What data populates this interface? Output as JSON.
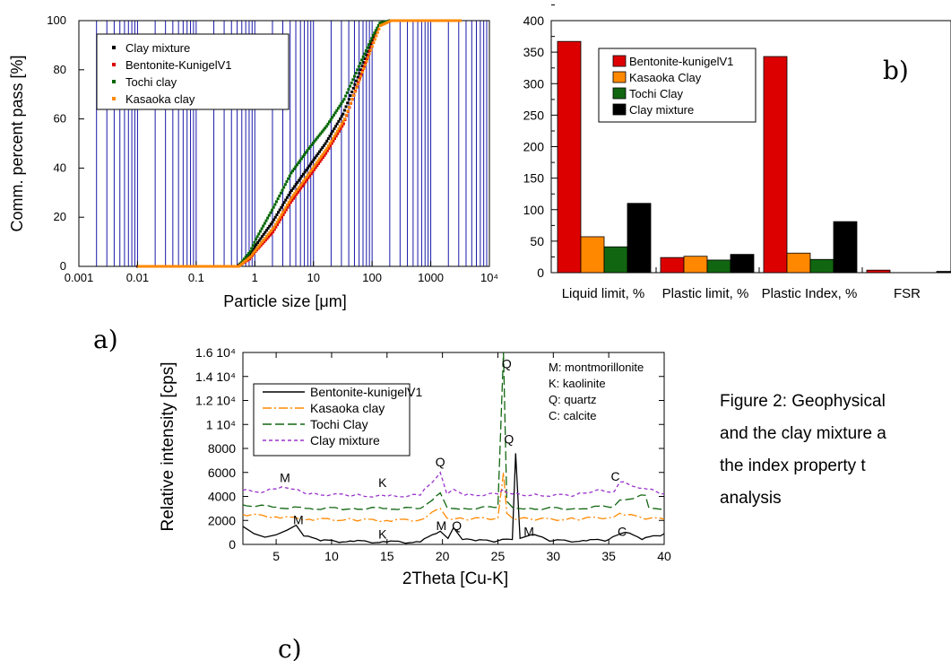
{
  "panel_labels": {
    "a": "a)",
    "b": "b)",
    "c": "c)"
  },
  "caption": {
    "line1": "Figure 2: Geophysical",
    "line2": "and the clay mixture a",
    "line3": "the   index   property   t",
    "line4": "analysis"
  },
  "chart_data": [
    {
      "id": "a",
      "type": "scatter",
      "xscale": "log",
      "xlabel": "Particle size [μm]",
      "ylabel": "Comm. percent pass [%]",
      "xlim": [
        0.001,
        10000
      ],
      "ylim": [
        0,
        100
      ],
      "xticks": [
        "0.001",
        "0.01",
        "0.1",
        "1",
        "10",
        "100",
        "1000",
        "10⁴"
      ],
      "yticks": [
        "0",
        "20",
        "40",
        "60",
        "80",
        "100"
      ],
      "grid": "vertical",
      "legend_position": "top-left",
      "series": [
        {
          "name": "Clay mixture",
          "color": "#000000",
          "x": [
            0.01,
            0.3,
            0.5,
            0.8,
            1,
            2,
            4,
            8,
            16,
            32,
            64,
            100,
            130,
            200,
            3000
          ],
          "y": [
            0,
            0,
            0,
            4,
            8,
            18,
            30,
            40,
            50,
            62,
            80,
            92,
            98,
            100,
            100
          ]
        },
        {
          "name": "Bentonite-KunigelV1",
          "color": "#dd0000",
          "x": [
            0.01,
            0.3,
            0.5,
            0.8,
            1,
            2,
            4,
            8,
            16,
            32,
            64,
            100,
            130,
            200,
            3000
          ],
          "y": [
            0,
            0,
            0,
            3,
            6,
            14,
            26,
            36,
            46,
            58,
            78,
            91,
            98,
            100,
            100
          ]
        },
        {
          "name": "Tochi clay",
          "color": "#006600",
          "x": [
            0.01,
            0.3,
            0.5,
            0.8,
            1,
            2,
            4,
            8,
            16,
            32,
            64,
            100,
            130,
            200,
            3000
          ],
          "y": [
            0,
            0,
            0,
            6,
            11,
            24,
            38,
            48,
            57,
            68,
            84,
            94,
            99,
            100,
            100
          ]
        },
        {
          "name": "Kasaoka clay",
          "color": "#ff8800",
          "x": [
            0.01,
            0.3,
            0.5,
            0.8,
            1,
            2,
            4,
            8,
            16,
            32,
            64,
            100,
            130,
            200,
            3000
          ],
          "y": [
            0,
            0,
            0,
            4,
            7,
            16,
            28,
            38,
            48,
            60,
            79,
            91,
            98,
            100,
            100
          ]
        }
      ]
    },
    {
      "id": "b",
      "type": "bar",
      "categories": [
        "Liquid limit, %",
        "Plastic limit, %",
        "Plastic Index, %",
        "FSR"
      ],
      "ylim": [
        0,
        400
      ],
      "yticks": [
        "0",
        "50",
        "100",
        "150",
        "200",
        "250",
        "300",
        "350",
        "400"
      ],
      "panel_text": "b)",
      "legend_position": "top-left",
      "series": [
        {
          "name": "Bentonite-kunigelV1",
          "color": "#dd0000",
          "values": [
            367,
            24,
            343,
            4
          ]
        },
        {
          "name": "Kasaoka Clay",
          "color": "#ff8800",
          "values": [
            57,
            26,
            31,
            0
          ]
        },
        {
          "name": "Tochi Clay",
          "color": "#116611",
          "values": [
            41,
            20,
            21,
            0
          ]
        },
        {
          "name": "Clay mixture",
          "color": "#000000",
          "values": [
            110,
            29,
            81,
            2
          ]
        }
      ]
    },
    {
      "id": "c",
      "type": "line",
      "xlabel": "2Theta [Cu-K]",
      "ylabel": "Relative intensity [cps]",
      "xlim": [
        2,
        40
      ],
      "ylim": [
        0,
        16000
      ],
      "xticks": [
        "5",
        "10",
        "15",
        "20",
        "25",
        "30",
        "35",
        "40"
      ],
      "yticks": [
        "0",
        "2000",
        "4000",
        "6000",
        "8000",
        "1 10⁴",
        "1.2 10⁴",
        "1.4 10⁴",
        "1.6 10⁴"
      ],
      "legend_position": "top-left",
      "series": [
        {
          "name": "Bentonite-kunigelV1",
          "color": "#000000",
          "dash": "solid",
          "x": [
            2,
            3,
            4,
            5,
            6,
            6.8,
            7.5,
            9,
            12,
            15,
            18,
            19.8,
            20.5,
            21,
            21.8,
            23,
            25,
            26.3,
            26.6,
            27,
            28,
            30,
            33,
            35,
            36.5,
            38,
            40
          ],
          "y": [
            1500,
            900,
            600,
            800,
            1200,
            1600,
            700,
            300,
            250,
            200,
            200,
            1100,
            500,
            1400,
            400,
            300,
            300,
            400,
            7600,
            500,
            800,
            300,
            300,
            400,
            1000,
            400,
            900
          ]
        },
        {
          "name": "Kasaoka clay",
          "color": "#ff8800",
          "dash": "dash-dot",
          "x": [
            2,
            5,
            8,
            12,
            15,
            18,
            19.8,
            20.4,
            22,
            25,
            25.5,
            25.8,
            26.3,
            28,
            32,
            35.5,
            36,
            38,
            40
          ],
          "y": [
            2500,
            2300,
            2100,
            2050,
            2000,
            2050,
            3000,
            2200,
            2100,
            2200,
            6000,
            2600,
            2200,
            2100,
            2100,
            2300,
            2600,
            2200,
            2100
          ]
        },
        {
          "name": "Tochi Clay",
          "color": "#116611",
          "dash": "long-dash",
          "x": [
            2,
            5,
            8,
            12,
            15,
            18,
            19.8,
            20.4,
            22,
            25,
            25.5,
            25.8,
            26.3,
            28,
            32,
            35.5,
            36,
            38.3,
            38.6,
            40
          ],
          "y": [
            3300,
            3100,
            3000,
            3000,
            3000,
            3000,
            4300,
            3100,
            3000,
            3100,
            16000,
            3600,
            3100,
            3000,
            3000,
            3200,
            3700,
            4100,
            3100,
            3000
          ]
        },
        {
          "name": "Clay mixture",
          "color": "#9933cc",
          "dash": "short-dash",
          "x": [
            2,
            4,
            5.5,
            6.5,
            8,
            12,
            15,
            18,
            19.8,
            20.4,
            21,
            22,
            25,
            25.5,
            25.8,
            26.3,
            28,
            32,
            33.8,
            35.5,
            36,
            38.5,
            40
          ],
          "y": [
            4500,
            4400,
            4800,
            4600,
            4200,
            4100,
            4000,
            4100,
            6000,
            4200,
            4600,
            4100,
            4200,
            4600,
            4300,
            4200,
            4100,
            4100,
            4500,
            4400,
            5200,
            4600,
            4200
          ]
        }
      ],
      "annotations": [
        {
          "text": "M",
          "x": 5.8,
          "y": 5200
        },
        {
          "text": "K",
          "x": 14.6,
          "y": 4800
        },
        {
          "text": "Q",
          "x": 19.8,
          "y": 6500
        },
        {
          "text": "Q",
          "x": 25.8,
          "y": 14700
        },
        {
          "text": "Q",
          "x": 26.0,
          "y": 8400
        },
        {
          "text": "C",
          "x": 35.6,
          "y": 5300
        },
        {
          "text": "M",
          "x": 7.0,
          "y": 1700
        },
        {
          "text": "K",
          "x": 14.6,
          "y": 500
        },
        {
          "text": "M",
          "x": 19.9,
          "y": 1200
        },
        {
          "text": "Q",
          "x": 21.3,
          "y": 1200
        },
        {
          "text": "M",
          "x": 27.8,
          "y": 700
        },
        {
          "text": "C",
          "x": 36.2,
          "y": 700
        }
      ],
      "key_box": [
        "M: montmorillonite",
        "K: kaolinite",
        "Q: quartz",
        "C: calcite"
      ]
    }
  ]
}
